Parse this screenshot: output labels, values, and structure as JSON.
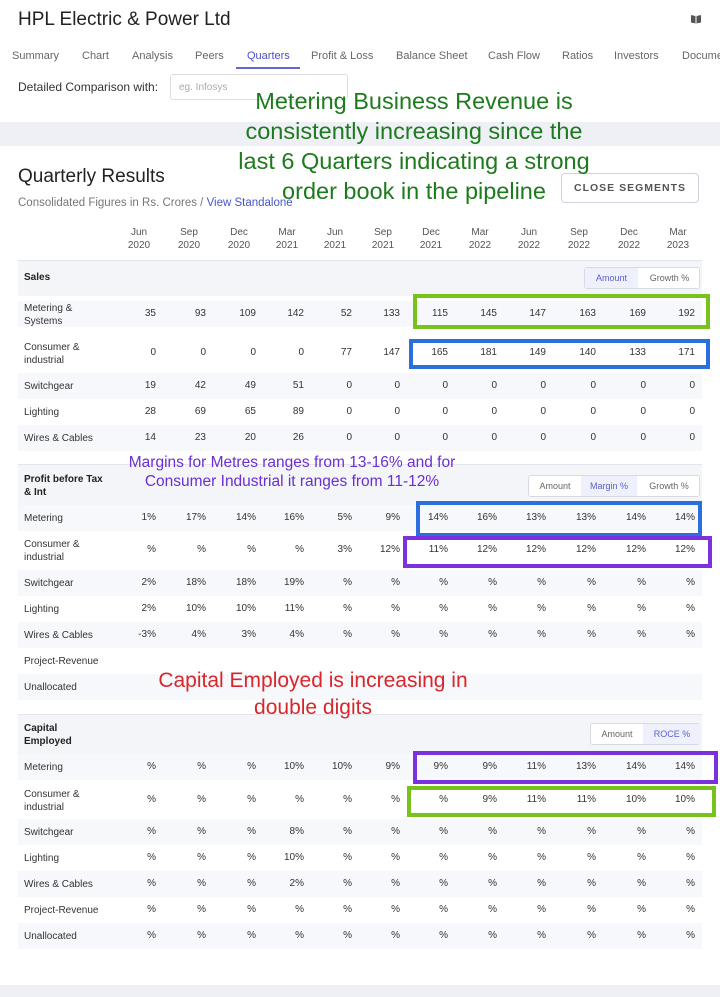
{
  "app": {
    "title": "HPL Electric & Power Ltd",
    "book_icon": "book-icon"
  },
  "nav": [
    "Summary",
    "Chart",
    "Analysis",
    "Peers",
    "Quarters",
    "Profit & Loss",
    "Balance Sheet",
    "Cash Flow",
    "Ratios",
    "Investors",
    "Documents"
  ],
  "nav_active": "Quarters",
  "compare": {
    "label": "Detailed Comparison with:",
    "placeholder": "eg. Infosys"
  },
  "quarterly": {
    "title": "Quarterly Results",
    "subtitle": "Consolidated Figures in Rs. Crores / ",
    "standalone_link": "View Standalone",
    "close_button": "CLOSE SEGMENTS",
    "headers": [
      [
        "Jun",
        "2020"
      ],
      [
        "Sep",
        "2020"
      ],
      [
        "Dec",
        "2020"
      ],
      [
        "Mar",
        "2021"
      ],
      [
        "Jun",
        "2021"
      ],
      [
        "Sep",
        "2021"
      ],
      [
        "Dec",
        "2021"
      ],
      [
        "Mar",
        "2022"
      ],
      [
        "Jun",
        "2022"
      ],
      [
        "Sep",
        "2022"
      ],
      [
        "Dec",
        "2022"
      ],
      [
        "Mar",
        "2023"
      ]
    ]
  },
  "sales": {
    "label": "Sales",
    "toggle": [
      "Amount",
      "Growth %"
    ],
    "rows": [
      {
        "label": [
          "Metering &",
          "Systems"
        ],
        "values": [
          "35",
          "93",
          "109",
          "142",
          "52",
          "133",
          "115",
          "145",
          "147",
          "163",
          "169",
          "192"
        ]
      },
      {
        "label": [
          "Consumer &",
          "industrial"
        ],
        "values": [
          "0",
          "0",
          "0",
          "0",
          "77",
          "147",
          "165",
          "181",
          "149",
          "140",
          "133",
          "171"
        ]
      },
      {
        "label": [
          "Switchgear"
        ],
        "values": [
          "19",
          "42",
          "49",
          "51",
          "0",
          "0",
          "0",
          "0",
          "0",
          "0",
          "0",
          "0"
        ]
      },
      {
        "label": [
          "Lighting"
        ],
        "values": [
          "28",
          "69",
          "65",
          "89",
          "0",
          "0",
          "0",
          "0",
          "0",
          "0",
          "0",
          "0"
        ]
      },
      {
        "label": [
          "Wires & Cables"
        ],
        "values": [
          "14",
          "23",
          "20",
          "26",
          "0",
          "0",
          "0",
          "0",
          "0",
          "0",
          "0",
          "0"
        ]
      }
    ]
  },
  "pbt": {
    "label": [
      "Profit before Tax",
      "& Int"
    ],
    "toggle": [
      "Amount",
      "Margin %",
      "Growth %"
    ],
    "rows": [
      {
        "label": [
          "Metering"
        ],
        "values": [
          "1%",
          "17%",
          "14%",
          "16%",
          "5%",
          "9%",
          "14%",
          "16%",
          "13%",
          "13%",
          "14%",
          "14%"
        ]
      },
      {
        "label": [
          "Consumer &",
          "industrial"
        ],
        "values": [
          "%",
          "%",
          "%",
          "%",
          "3%",
          "12%",
          "11%",
          "12%",
          "12%",
          "12%",
          "12%",
          "12%"
        ]
      },
      {
        "label": [
          "Switchgear"
        ],
        "values": [
          "2%",
          "18%",
          "18%",
          "19%",
          "%",
          "%",
          "%",
          "%",
          "%",
          "%",
          "%",
          "%"
        ]
      },
      {
        "label": [
          "Lighting"
        ],
        "values": [
          "2%",
          "10%",
          "10%",
          "11%",
          "%",
          "%",
          "%",
          "%",
          "%",
          "%",
          "%",
          "%"
        ]
      },
      {
        "label": [
          "Wires & Cables"
        ],
        "values": [
          "-3%",
          "4%",
          "3%",
          "4%",
          "%",
          "%",
          "%",
          "%",
          "%",
          "%",
          "%",
          "%"
        ]
      },
      {
        "label": [
          "Project-Revenue"
        ],
        "values": []
      },
      {
        "label": [
          "Unallocated"
        ],
        "values": []
      }
    ]
  },
  "capital": {
    "label": [
      "Capital",
      "Employed"
    ],
    "toggle": [
      "Amount",
      "ROCE %"
    ],
    "rows": [
      {
        "label": [
          "Metering"
        ],
        "values": [
          "%",
          "%",
          "%",
          "10%",
          "10%",
          "9%",
          "9%",
          "9%",
          "11%",
          "13%",
          "14%",
          "14%"
        ]
      },
      {
        "label": [
          "Consumer &",
          "industrial"
        ],
        "values": [
          "%",
          "%",
          "%",
          "%",
          "%",
          "%",
          "%",
          "9%",
          "11%",
          "11%",
          "10%",
          "10%"
        ]
      },
      {
        "label": [
          "Switchgear"
        ],
        "values": [
          "%",
          "%",
          "%",
          "8%",
          "%",
          "%",
          "%",
          "%",
          "%",
          "%",
          "%",
          "%"
        ]
      },
      {
        "label": [
          "Lighting"
        ],
        "values": [
          "%",
          "%",
          "%",
          "10%",
          "%",
          "%",
          "%",
          "%",
          "%",
          "%",
          "%",
          "%"
        ]
      },
      {
        "label": [
          "Wires & Cables"
        ],
        "values": [
          "%",
          "%",
          "%",
          "2%",
          "%",
          "%",
          "%",
          "%",
          "%",
          "%",
          "%",
          "%"
        ]
      },
      {
        "label": [
          "Project-Revenue"
        ],
        "values": [
          "%",
          "%",
          "%",
          "%",
          "%",
          "%",
          "%",
          "%",
          "%",
          "%",
          "%",
          "%"
        ]
      },
      {
        "label": [
          "Unallocated"
        ],
        "values": [
          "%",
          "%",
          "%",
          "%",
          "%",
          "%",
          "%",
          "%",
          "%",
          "%",
          "%",
          "%"
        ]
      }
    ]
  },
  "annotations": {
    "metering": [
      "Metering Business Revenue is",
      "consistently increasing since the",
      "last 6 Quarters indicating a strong",
      "order book in the pipeline"
    ],
    "margins": [
      "Margins for Metres ranges from 13-16% and for",
      "Consumer Industrial it ranges from 11-12%"
    ],
    "capital": [
      "Capital Employed is increasing in",
      "double digits"
    ]
  },
  "colors": {
    "green": "#1e7a1e",
    "purple": "#6a2fd1",
    "red": "#d8262b",
    "box_green": "#78c21e",
    "box_blue": "#2a6fdd",
    "box_purple": "#7a32dc"
  }
}
